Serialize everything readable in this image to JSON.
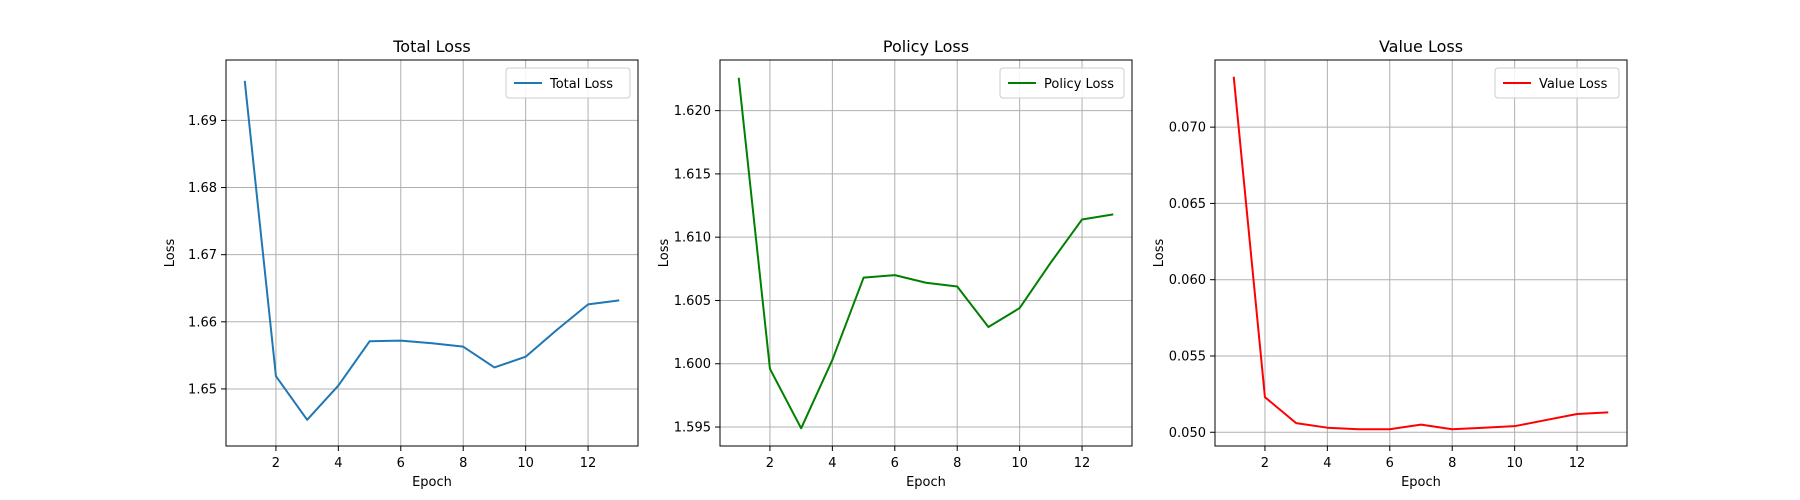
{
  "chart_data": [
    {
      "type": "line",
      "title": "Total Loss",
      "xlabel": "Epoch",
      "ylabel": "Loss",
      "grid": true,
      "legend": "top-right",
      "xlim": [
        0.4,
        13.6
      ],
      "ylim": [
        1.6415,
        1.699
      ],
      "xticks": [
        2,
        4,
        6,
        8,
        10,
        12
      ],
      "yticks": [
        1.65,
        1.66,
        1.67,
        1.68,
        1.69
      ],
      "x": [
        1,
        2,
        3,
        4,
        5,
        6,
        7,
        8,
        9,
        10,
        11,
        12,
        13
      ],
      "series": [
        {
          "name": "Total Loss",
          "color": "#1f77b4",
          "values": [
            1.6959,
            1.6519,
            1.6454,
            1.6505,
            1.6571,
            1.6572,
            1.6568,
            1.6563,
            1.6532,
            1.6548,
            1.6588,
            1.6626,
            1.6632
          ]
        }
      ]
    },
    {
      "type": "line",
      "title": "Policy Loss",
      "xlabel": "Epoch",
      "ylabel": "Loss",
      "grid": true,
      "legend": "top-right",
      "xlim": [
        0.4,
        13.6
      ],
      "ylim": [
        1.5935,
        1.624
      ],
      "xticks": [
        2,
        4,
        6,
        8,
        10,
        12
      ],
      "yticks": [
        1.595,
        1.6,
        1.605,
        1.61,
        1.615,
        1.62
      ],
      "ytick_labels": [
        "1.595",
        "1.600",
        "1.605",
        "1.610",
        "1.615",
        "1.620"
      ],
      "x": [
        1,
        2,
        3,
        4,
        5,
        6,
        7,
        8,
        9,
        10,
        11,
        12,
        13
      ],
      "series": [
        {
          "name": "Policy Loss",
          "color": "#008000",
          "values": [
            1.6226,
            1.5996,
            1.5949,
            1.6003,
            1.6068,
            1.607,
            1.6064,
            1.6061,
            1.6029,
            1.6044,
            1.608,
            1.6114,
            1.6118
          ]
        }
      ]
    },
    {
      "type": "line",
      "title": "Value Loss",
      "xlabel": "Epoch",
      "ylabel": "Loss",
      "grid": true,
      "legend": "top-right",
      "xlim": [
        0.4,
        13.6
      ],
      "ylim": [
        0.0491,
        0.0744
      ],
      "xticks": [
        2,
        4,
        6,
        8,
        10,
        12
      ],
      "yticks": [
        0.05,
        0.055,
        0.06,
        0.065,
        0.07
      ],
      "ytick_labels": [
        "0.050",
        "0.055",
        "0.060",
        "0.065",
        "0.070"
      ],
      "x": [
        1,
        2,
        3,
        4,
        5,
        6,
        7,
        8,
        9,
        10,
        11,
        12,
        13
      ],
      "series": [
        {
          "name": "Value Loss",
          "color": "#ff0000",
          "values": [
            0.0733,
            0.0523,
            0.0506,
            0.0503,
            0.0502,
            0.0502,
            0.0505,
            0.0502,
            0.0503,
            0.0504,
            0.0508,
            0.0512,
            0.0513
          ]
        }
      ]
    }
  ]
}
